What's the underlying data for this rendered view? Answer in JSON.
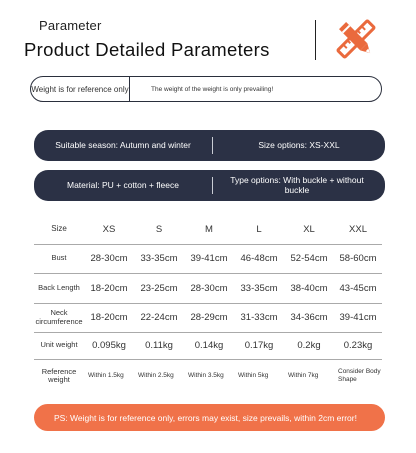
{
  "header": {
    "subtitle": "Parameter",
    "title": "Product Detailed Parameters",
    "logo_icon": "pencil-ruler-icon",
    "accent": "#ea6a3d"
  },
  "reference": {
    "left": "Weight is for reference only",
    "right": "The weight of the weight is only prevailing!"
  },
  "info": {
    "season": "Suitable season: Autumn and winter",
    "sizes": "Size options: XS-XXL",
    "material": "Material: PU + cotton + fleece",
    "types": "Type options: With buckle + without buckle"
  },
  "table": {
    "header_label": "Size",
    "sizes": [
      "XS",
      "S",
      "M",
      "L",
      "XL",
      "XXL"
    ],
    "rows": [
      {
        "label": "Bust",
        "values": [
          "28-30cm",
          "33-35cm",
          "39-41cm",
          "46-48cm",
          "52-54cm",
          "58-60cm"
        ]
      },
      {
        "label": "Back Length",
        "values": [
          "18-20cm",
          "23-25cm",
          "28-30cm",
          "33-35cm",
          "38-40cm",
          "43-45cm"
        ]
      },
      {
        "label": "Neck circumference",
        "values": [
          "18-20cm",
          "22-24cm",
          "28-29cm",
          "31-33cm",
          "34-36cm",
          "39-41cm"
        ]
      },
      {
        "label": "Unit weight",
        "values": [
          "0.095kg",
          "0.11kg",
          "0.14kg",
          "0.17kg",
          "0.2kg",
          "0.23kg"
        ]
      },
      {
        "label": "Reference weight",
        "values": [
          "Within 1.5kg",
          "Within 2.5kg",
          "Within 3.5kg",
          "Within 5kg",
          "Within 7kg",
          "Consider Body Shape"
        ]
      }
    ]
  },
  "notice": "PS: Weight is for reference only, errors may exist, size prevails, within 2cm error!",
  "colors": {
    "navy": "#2b3145",
    "orange": "#f07249"
  }
}
